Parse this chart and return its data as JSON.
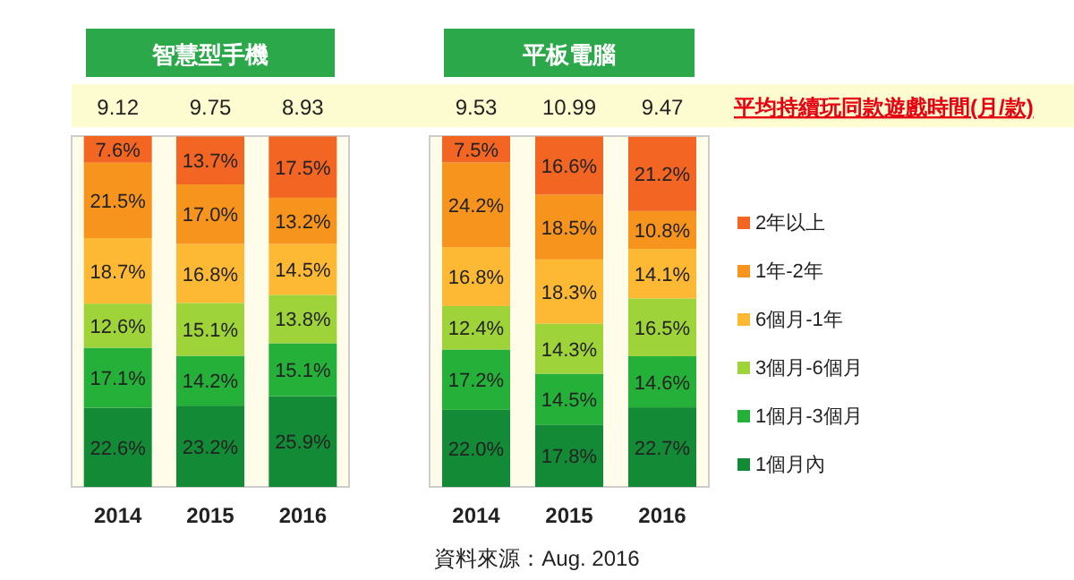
{
  "chart_data": [
    {
      "type": "bar",
      "stacked": true,
      "title": "智慧型手機",
      "categories": [
        "2014",
        "2015",
        "2016"
      ],
      "series": [
        {
          "color": "#138a36",
          "values": [
            22.6,
            23.2,
            25.9
          ],
          "value_labels": [
            "22.6%",
            "23.2%",
            "25.9%"
          ]
        },
        {
          "color": "#25b03a",
          "values": [
            17.1,
            14.2,
            15.1
          ],
          "value_labels": [
            "17.1%",
            "14.2%",
            "15.1%"
          ]
        },
        {
          "color": "#9fd33a",
          "values": [
            12.6,
            15.1,
            13.8
          ],
          "value_labels": [
            "12.6%",
            "15.1%",
            "13.8%"
          ]
        },
        {
          "color": "#fdb933",
          "values": [
            18.7,
            16.8,
            14.5
          ],
          "value_labels": [
            "18.7%",
            "16.8%",
            "14.5%"
          ]
        },
        {
          "color": "#f7941d",
          "values": [
            21.5,
            17.0,
            13.2
          ],
          "value_labels": [
            "21.5%",
            "17.0%",
            "13.2%"
          ]
        },
        {
          "color": "#f26522",
          "values": [
            7.6,
            13.7,
            17.5
          ],
          "value_labels": [
            "7.6%",
            "13.7%",
            "17.5%"
          ]
        }
      ],
      "annotations": [
        "9.12",
        "9.75",
        "8.93"
      ]
    },
    {
      "type": "bar",
      "stacked": true,
      "title": "平板電腦",
      "categories": [
        "2014",
        "2015",
        "2016"
      ],
      "legend": "right",
      "series": [
        {
          "name": "1個月內",
          "color": "#138a36",
          "values": [
            22.0,
            17.8,
            22.7
          ],
          "value_labels": [
            "22.0%",
            "17.8%",
            "22.7%"
          ]
        },
        {
          "name": "1個月-3個月",
          "color": "#25b03a",
          "values": [
            17.2,
            14.5,
            14.6
          ],
          "value_labels": [
            "17.2%",
            "14.5%",
            "14.6%"
          ]
        },
        {
          "name": "3個月-6個月",
          "color": "#9fd33a",
          "values": [
            12.4,
            14.3,
            16.5
          ],
          "value_labels": [
            "12.4%",
            "14.3%",
            "16.5%"
          ]
        },
        {
          "name": "6個月-1年",
          "color": "#fdb933",
          "values": [
            16.8,
            18.3,
            14.1
          ],
          "value_labels": [
            "16.8%",
            "18.3%",
            "14.1%"
          ]
        },
        {
          "name": "1年-2年",
          "color": "#f7941d",
          "values": [
            24.2,
            18.5,
            10.8
          ],
          "value_labels": [
            "24.2%",
            "18.5%",
            "10.8%"
          ]
        },
        {
          "name": "2年以上",
          "color": "#f26522",
          "values": [
            7.5,
            16.6,
            21.2
          ],
          "value_labels": [
            "7.5%",
            "16.6%",
            "21.2%"
          ]
        }
      ],
      "annotations": [
        "9.53",
        "10.99",
        "9.47",
        "平均持續玩同款遊戲時間(月/款)",
        "資料來源：Aug. 2016"
      ]
    }
  ]
}
